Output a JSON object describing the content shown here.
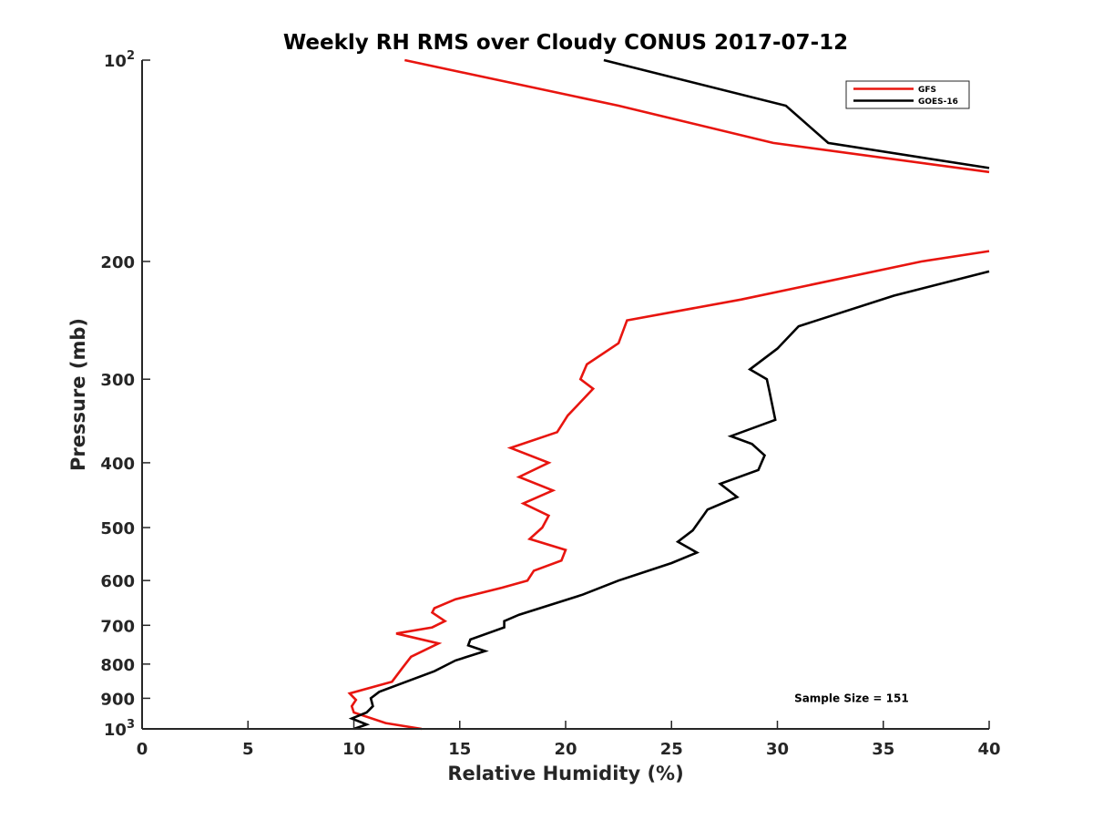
{
  "chart_data": {
    "type": "line",
    "title": "Weekly RH RMS over Cloudy CONUS 2017-07-12",
    "xlabel": "Relative Humidity (%)",
    "ylabel": "Pressure (mb)",
    "xlim": [
      0,
      40
    ],
    "ylim": [
      100,
      1000
    ],
    "y_scale": "log",
    "y_reversed": true,
    "grid": false,
    "legend_position": "top-right",
    "x_ticks": [
      {
        "value": 0,
        "label": "0"
      },
      {
        "value": 5,
        "label": "5"
      },
      {
        "value": 10,
        "label": "10"
      },
      {
        "value": 15,
        "label": "15"
      },
      {
        "value": 20,
        "label": "20"
      },
      {
        "value": 25,
        "label": "25"
      },
      {
        "value": 30,
        "label": "30"
      },
      {
        "value": 35,
        "label": "35"
      },
      {
        "value": 40,
        "label": "40"
      }
    ],
    "y_ticks": [
      {
        "value": 100,
        "label": "10",
        "sup": "2"
      },
      {
        "value": 200,
        "label": "200",
        "sup": ""
      },
      {
        "value": 300,
        "label": "300",
        "sup": ""
      },
      {
        "value": 400,
        "label": "400",
        "sup": ""
      },
      {
        "value": 500,
        "label": "500",
        "sup": ""
      },
      {
        "value": 600,
        "label": "600",
        "sup": ""
      },
      {
        "value": 700,
        "label": "700",
        "sup": ""
      },
      {
        "value": 800,
        "label": "800",
        "sup": ""
      },
      {
        "value": 900,
        "label": "900",
        "sup": ""
      },
      {
        "value": 1000,
        "label": "10",
        "sup": "3"
      }
    ],
    "series": [
      {
        "name": "GFS",
        "color": "#e8150f",
        "points": [
          [
            13.2,
            1000
          ],
          [
            11.5,
            980
          ],
          [
            10.0,
            945
          ],
          [
            9.9,
            925
          ],
          [
            10.1,
            905
          ],
          [
            9.8,
            885
          ],
          [
            11.8,
            850
          ],
          [
            12.3,
            810
          ],
          [
            12.7,
            780
          ],
          [
            14.0,
            745
          ],
          [
            12.0,
            720
          ],
          [
            13.7,
            705
          ],
          [
            14.3,
            690
          ],
          [
            13.7,
            670
          ],
          [
            13.8,
            660
          ],
          [
            14.8,
            640
          ],
          [
            17.0,
            615
          ],
          [
            18.2,
            600
          ],
          [
            18.5,
            580
          ],
          [
            19.8,
            560
          ],
          [
            20.0,
            540
          ],
          [
            18.3,
            520
          ],
          [
            18.9,
            500
          ],
          [
            19.2,
            480
          ],
          [
            18.0,
            460
          ],
          [
            19.4,
            440
          ],
          [
            17.8,
            420
          ],
          [
            19.2,
            400
          ],
          [
            17.4,
            380
          ],
          [
            19.6,
            360
          ],
          [
            20.1,
            340
          ],
          [
            21.3,
            310
          ],
          [
            20.7,
            300
          ],
          [
            21.0,
            285
          ],
          [
            22.5,
            265
          ],
          [
            22.9,
            245
          ],
          [
            28.3,
            228
          ],
          [
            36.8,
            200
          ],
          [
            40.0,
            193
          ]
        ]
      },
      {
        "name": "GOES-16",
        "color": "#000000",
        "points": [
          [
            10.0,
            1000
          ],
          [
            10.6,
            985
          ],
          [
            9.9,
            965
          ],
          [
            10.6,
            945
          ],
          [
            10.9,
            925
          ],
          [
            10.8,
            900
          ],
          [
            11.2,
            880
          ],
          [
            13.8,
            820
          ],
          [
            14.8,
            790
          ],
          [
            16.2,
            765
          ],
          [
            15.4,
            750
          ],
          [
            15.5,
            735
          ],
          [
            17.1,
            705
          ],
          [
            17.1,
            690
          ],
          [
            17.8,
            675
          ],
          [
            20.8,
            630
          ],
          [
            22.5,
            600
          ],
          [
            25.0,
            565
          ],
          [
            26.2,
            545
          ],
          [
            25.3,
            525
          ],
          [
            26.0,
            505
          ],
          [
            26.5,
            480
          ],
          [
            26.7,
            470
          ],
          [
            28.1,
            450
          ],
          [
            27.3,
            430
          ],
          [
            29.1,
            410
          ],
          [
            29.4,
            390
          ],
          [
            28.8,
            375
          ],
          [
            27.8,
            365
          ],
          [
            29.9,
            345
          ],
          [
            29.6,
            310
          ],
          [
            29.5,
            300
          ],
          [
            28.7,
            290
          ],
          [
            30.0,
            270
          ],
          [
            31.0,
            250
          ],
          [
            35.5,
            225
          ],
          [
            40.0,
            207
          ]
        ]
      },
      {
        "name": "GFS",
        "color": "#e8150f",
        "points": [
          [
            12.4,
            100
          ],
          [
            22.5,
            117
          ],
          [
            29.8,
            133
          ],
          [
            40.0,
            147
          ]
        ]
      },
      {
        "name": "GOES-16",
        "color": "#000000",
        "points": [
          [
            21.8,
            100
          ],
          [
            30.4,
            117
          ],
          [
            32.4,
            133
          ],
          [
            40.0,
            145
          ]
        ]
      }
    ],
    "legend": [
      {
        "label": "GFS",
        "color": "#e8150f"
      },
      {
        "label": "GOES-16",
        "color": "#000000"
      }
    ],
    "annotations": [
      {
        "text": "Sample Size = 151",
        "x": 33.5,
        "y": 900
      }
    ]
  }
}
